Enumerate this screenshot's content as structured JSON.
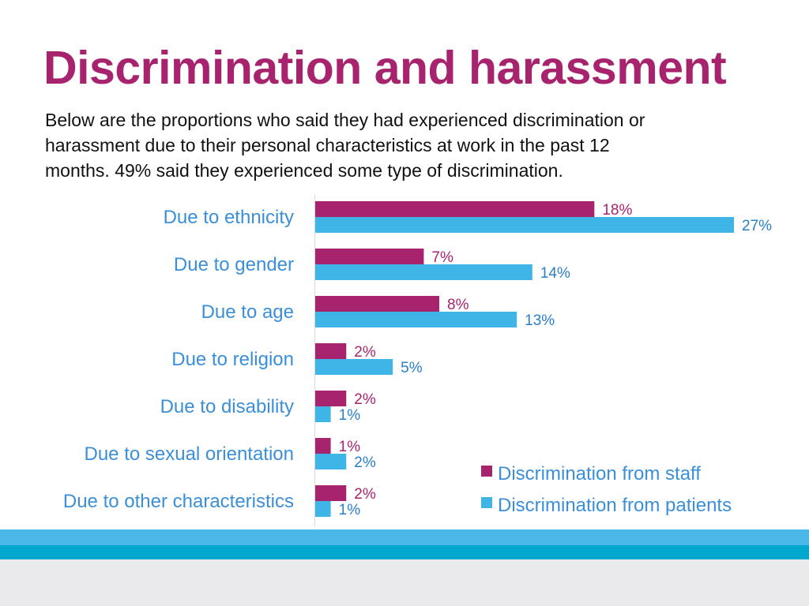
{
  "title": "Discrimination and harassment",
  "description": {
    "line1": "Below are the proportions who said they had experienced discrimination or",
    "line2": "harassment due to their personal characteristics at work in the past 12",
    "line3": "months. 49% said they experienced some type of discrimination."
  },
  "chart_data": {
    "type": "bar",
    "orientation": "horizontal",
    "categories": [
      "Due to ethnicity",
      "Due to gender",
      "Due to age",
      "Due to religion",
      "Due to disability",
      "Due to sexual orientation",
      "Due to other characteristics"
    ],
    "series": [
      {
        "name": "Discrimination from staff",
        "color": "#A8236E",
        "values": [
          18,
          7,
          8,
          2,
          2,
          1,
          2
        ],
        "labels": [
          "18%",
          "7%",
          "8%",
          "2%",
          "2%",
          "1%",
          "2%"
        ]
      },
      {
        "name": "Discrimination from patients",
        "color": "#3FB4E6",
        "values": [
          27,
          14,
          13,
          5,
          1,
          2,
          1
        ],
        "labels": [
          "27%",
          "14%",
          "13%",
          "5%",
          "1%",
          "2%",
          "1%"
        ]
      }
    ],
    "xlim": [
      0,
      27
    ],
    "value_unit": "%",
    "legend_position": "bottom-right",
    "grid": false
  },
  "colors": {
    "title": "#A8236E",
    "category_label": "#3A8FD8",
    "staff": "#A8236E",
    "patients": "#3FB4E6"
  }
}
